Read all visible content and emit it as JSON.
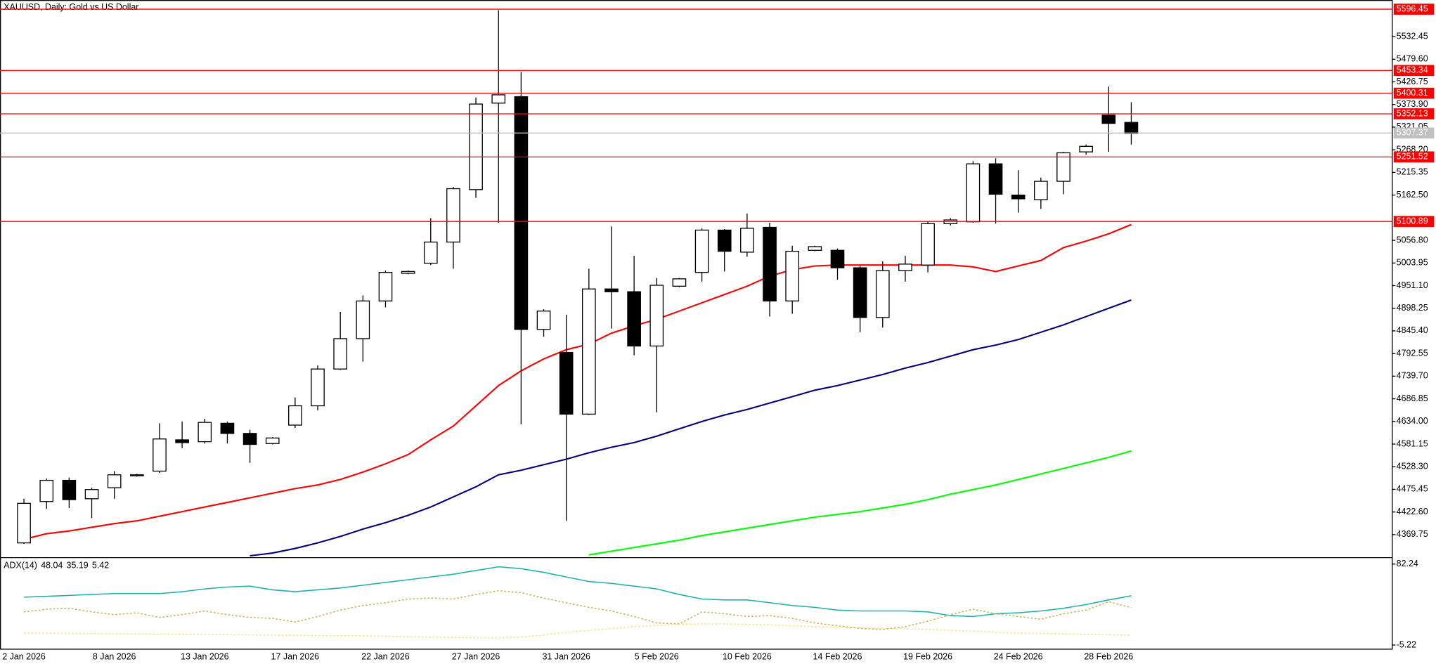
{
  "chart_data": [
    {
      "type": "candlestick",
      "title": "XAUUSD, Daily:  Gold vs US Dollar",
      "categories": [
        "2 Jan 2026",
        null,
        null,
        null,
        "8 Jan 2026",
        null,
        null,
        null,
        "13 Jan 2026",
        null,
        null,
        null,
        "17 Jan 2026",
        null,
        null,
        null,
        "22 Jan 2026",
        null,
        null,
        null,
        "27 Jan 2026",
        null,
        null,
        null,
        "31 Jan 2026",
        null,
        null,
        null,
        "5 Feb 2026",
        null,
        null,
        null,
        "10 Feb 2026",
        null,
        null,
        null,
        "14 Feb 2026",
        null,
        null,
        null,
        "19 Feb 2026",
        null,
        null,
        null,
        "24 Feb 2026",
        null,
        null,
        null,
        "28 Feb 2026",
        null
      ],
      "open": [
        4350.4,
        4447.1,
        4496.5,
        4453.5,
        4479.3,
        4507.2,
        4518.0,
        4591.0,
        4586.7,
        4629.7,
        4606.0,
        4582.4,
        4625.4,
        4670.5,
        4756.4,
        4827.3,
        4915.3,
        4979.8,
        5003.4,
        5052.8,
        5175.3,
        5377.2,
        5392.2,
        4848.8,
        4795.1,
        4651.1,
        4943.3,
        4936.8,
        4810.1,
        4949.7,
        4981.9,
        5080.7,
        5029.2,
        5087.2,
        4915.3,
        5033.5,
        5033.5,
        4992.7,
        4876.7,
        4986.2,
        4999.1,
        5095.8,
        5100.1,
        5235.4,
        5162.4,
        5151.6,
        5194.6,
        5263.3,
        5349.2,
        5332.1
      ],
      "high": [
        4453.5,
        4500.8,
        4502.9,
        4479.3,
        4518.0,
        4511.5,
        4629.7,
        4633.9,
        4640.4,
        4633.9,
        4614.6,
        4597.4,
        4689.8,
        4765.0,
        4889.6,
        4928.2,
        4986.2,
        4986.2,
        5108.7,
        5181.7,
        5390.1,
        5594.1,
        5450.2,
        4896.0,
        4883.1,
        4990.5,
        5089.3,
        5020.6,
        4969.0,
        4969.0,
        5085.0,
        5082.9,
        5119.4,
        5097.9,
        5044.2,
        5044.2,
        5037.8,
        4997.0,
        5007.7,
        5020.6,
        5100.1,
        5108.7,
        5241.8,
        5248.3,
        5220.4,
        5203.2,
        5263.3,
        5280.5,
        5415.8,
        5379.3
      ],
      "low": [
        4348.3,
        4429.9,
        4432.0,
        4408.4,
        4453.5,
        4505.1,
        4513.7,
        4571.7,
        4582.4,
        4582.4,
        4537.3,
        4580.3,
        4618.9,
        4659.7,
        4754.3,
        4773.6,
        4900.3,
        4977.6,
        4999.1,
        4990.5,
        5155.9,
        5097.9,
        4627.5,
        4831.6,
        4402.0,
        4649.0,
        4850.9,
        4788.6,
        4655.4,
        4947.6,
        4960.5,
        4984.1,
        5018.5,
        4878.8,
        4885.3,
        5031.3,
        4964.8,
        4842.3,
        4853.1,
        4960.5,
        4981.9,
        5091.5,
        5097.9,
        5095.8,
        5121.6,
        5130.2,
        5164.5,
        5256.9,
        5263.3,
        5280.5
      ],
      "close": [
        4442.8,
        4496.5,
        4451.4,
        4475.0,
        4509.4,
        4509.4,
        4593.1,
        4584.6,
        4631.8,
        4606.0,
        4580.3,
        4595.3,
        4670.5,
        4756.4,
        4827.3,
        4915.3,
        4981.9,
        4984.1,
        5052.8,
        5177.4,
        5375.0,
        5396.5,
        4848.8,
        4891.7,
        4651.1,
        4943.3,
        4936.8,
        4810.1,
        4951.9,
        4966.9,
        5080.7,
        5031.3,
        5085.0,
        4915.3,
        5031.3,
        5042.1,
        4992.7,
        4876.7,
        4986.2,
        5001.3,
        5095.8,
        5104.4,
        5235.4,
        5164.5,
        5153.8,
        5194.6,
        5261.2,
        5276.2,
        5329.9,
        5306.3
      ],
      "up_color": "#ffffff",
      "down_color": "#000000",
      "outline_color": "#000000",
      "overlays": [
        {
          "color": "#ff0000",
          "values": [
            4359.0,
            4371.9,
            4378.3,
            4386.9,
            4395.5,
            4402.0,
            4412.7,
            4423.5,
            4434.2,
            4444.9,
            4455.7,
            4466.4,
            4477.2,
            4485.7,
            4498.6,
            4515.8,
            4535.1,
            4556.6,
            4591.0,
            4623.2,
            4670.5,
            4717.7,
            4752.1,
            4780.0,
            4801.5,
            4814.4,
            4840.2,
            4857.3,
            4872.4,
            4891.7,
            4911.0,
            4930.4,
            4949.7,
            4973.3,
            4988.4,
            4997.0,
            4999.1,
            4999.1,
            4999.1,
            4999.1,
            4999.1,
            4999.1,
            4994.8,
            4984.1,
            4997.0,
            5009.8,
            5039.9,
            5055.0,
            5072.1,
            5093.6
          ]
        },
        {
          "color": "#000080",
          "values": [
            null,
            null,
            null,
            null,
            null,
            null,
            null,
            null,
            null,
            null,
            4320.3,
            4326.8,
            4337.5,
            4350.4,
            4365.5,
            4382.6,
            4397.7,
            4414.9,
            4434.2,
            4457.8,
            4481.4,
            4509.4,
            4520.1,
            4533.0,
            4545.9,
            4560.9,
            4573.8,
            4584.6,
            4599.6,
            4616.8,
            4633.9,
            4649.0,
            4661.9,
            4676.9,
            4691.9,
            4707.0,
            4717.7,
            4730.6,
            4743.5,
            4758.5,
            4771.4,
            4786.5,
            4801.5,
            4812.3,
            4825.1,
            4842.3,
            4859.5,
            4878.8,
            4898.2,
            4917.5
          ]
        },
        {
          "color": "#00ff00",
          "values": [
            null,
            null,
            null,
            null,
            null,
            null,
            null,
            null,
            null,
            null,
            null,
            null,
            null,
            null,
            null,
            null,
            null,
            null,
            null,
            null,
            null,
            null,
            null,
            null,
            null,
            4322.5,
            4331.1,
            4339.7,
            4348.3,
            4356.9,
            4367.6,
            4376.2,
            4384.8,
            4393.4,
            4402.0,
            4410.6,
            4417.0,
            4423.5,
            4432.0,
            4440.6,
            4451.4,
            4464.3,
            4475.0,
            4485.7,
            4498.6,
            4511.5,
            4524.4,
            4537.3,
            4550.2,
            4565.2
          ]
        }
      ],
      "levels": [
        {
          "price": 5596.45,
          "color": "#ff0000"
        },
        {
          "price": 5453.34,
          "color": "#ff0000"
        },
        {
          "price": 5400.31,
          "color": "#ff0000"
        },
        {
          "price": 5352.13,
          "color": "#ff0000"
        },
        {
          "price": 5251.52,
          "color": "#ff0000"
        },
        {
          "price": 5100.89,
          "color": "#ff0000"
        }
      ],
      "current_price": 5307.37,
      "current_price_color": "#c0c0c0",
      "ylim": [
        4318.2,
        5617.9
      ],
      "yticks": [
        4369.75,
        {
          "value": 4422.6,
          "label": "4422.60"
        },
        4475.45,
        {
          "value": 4528.3,
          "label": "4528.30"
        },
        4581.15,
        {
          "value": 4634,
          "label": "4634.00"
        },
        4686.85,
        {
          "value": 4739.7,
          "label": "4739.70"
        },
        4792.55,
        {
          "value": 4845.4,
          "label": "4845.40"
        },
        4898.25,
        {
          "value": 4951.1,
          "label": "4951.10"
        },
        5003.95,
        {
          "value": 5056.8,
          "label": "5056.80"
        },
        {
          "value": 5162.5,
          "label": "5162.50"
        },
        5215.35,
        {
          "value": 5268.2,
          "label": "5268.20"
        },
        5321.05,
        {
          "value": 5373.9,
          "label": "5373.90"
        },
        5426.75,
        {
          "value": 5479.6,
          "label": "5479.60"
        },
        5532.45
      ],
      "grid": false
    },
    {
      "type": "line",
      "title": "ADX(14)",
      "series": [
        {
          "color": "#20b2aa",
          "dash": false,
          "values": [
            46.5,
            47.4,
            48.4,
            49.4,
            50.4,
            50.4,
            50.4,
            52.4,
            55.4,
            57.4,
            58.4,
            54.4,
            52.4,
            54.4,
            56.4,
            59.4,
            62.4,
            65.3,
            68.3,
            71.3,
            75.3,
            79.3,
            77.3,
            73.3,
            68.3,
            63.4,
            61.4,
            58.4,
            55.4,
            49.4,
            44.5,
            43.5,
            43.5,
            40.5,
            37.5,
            35.5,
            32.5,
            31.6,
            31.6,
            31.6,
            30.6,
            26.6,
            25.6,
            28.6,
            29.6,
            31.6,
            34.5,
            38.5,
            43.5,
            48.04
          ]
        },
        {
          "color": "#c8b45a",
          "dash": true,
          "values": [
            30.6,
            33.5,
            34.5,
            30.6,
            27.6,
            29.6,
            24.6,
            27.6,
            31.6,
            27.6,
            24.6,
            23.6,
            19.6,
            25.6,
            32.5,
            37.5,
            40.5,
            44.5,
            45.5,
            44.5,
            49.4,
            53.4,
            51.4,
            45.5,
            40.5,
            35.5,
            31.6,
            25.6,
            18.6,
            17.6,
            30.6,
            28.6,
            25.6,
            26.6,
            23.6,
            18.6,
            15.6,
            12.7,
            11.7,
            14.6,
            20.6,
            27.6,
            33.5,
            28.6,
            25.6,
            22.6,
            28.6,
            32.5,
            41.5,
            35.19
          ]
        },
        {
          "color": "#f0e68c",
          "dash": true,
          "values": [
            7.7,
            7.5,
            7.3,
            7.1,
            6.9,
            6.7,
            6.5,
            6.3,
            6.1,
            5.9,
            5.7,
            5.5,
            5.3,
            5.0,
            4.8,
            4.7,
            4.2,
            3.7,
            3.2,
            2.9,
            2.7,
            2.5,
            3.5,
            5.5,
            8.5,
            10.6,
            12.6,
            14.6,
            16.1,
            17.1,
            17.6,
            17.6,
            17.1,
            16.6,
            15.6,
            14.6,
            14.1,
            13.6,
            12.7,
            12.2,
            11.7,
            10.7,
            9.7,
            8.7,
            7.7,
            7.2,
            6.7,
            6.2,
            5.8,
            5.42
          ]
        }
      ],
      "ylim": [
        -9.2,
        88.2
      ],
      "yticks": [
        -5.22,
        82.24
      ]
    }
  ]
}
